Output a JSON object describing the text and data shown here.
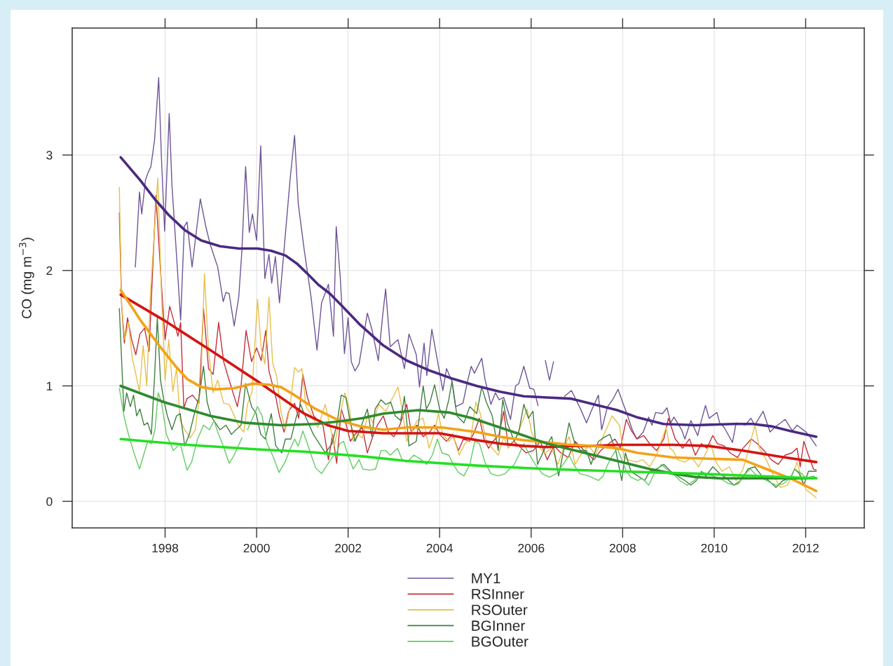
{
  "chart_data": {
    "type": "line",
    "ylabel": "CO (mg m$^{−3}$)",
    "xlim": [
      1995.97,
      2013.28
    ],
    "ylim": [
      -0.23,
      4.1
    ],
    "xticks": [
      1998,
      2000,
      2002,
      2004,
      2006,
      2008,
      2010,
      2012
    ],
    "yticks": [
      0,
      1,
      2,
      3
    ],
    "grid": true,
    "legend": "bottom",
    "series": [
      {
        "name": "MY1",
        "color": "#6e5496",
        "x": [
          1997.35,
          1997.44,
          1997.49,
          1997.57,
          1997.62,
          1997.69,
          1997.77,
          1997.86,
          1997.92,
          1997.99,
          1998.09,
          1998.15,
          1998.26,
          1998.34,
          1998.42,
          1998.48,
          1998.59,
          1998.66,
          1998.77,
          1998.89,
          1998.99,
          1999.15,
          1999.27,
          1999.33,
          1999.4,
          1999.51,
          1999.61,
          1999.68,
          1999.76,
          1999.84,
          1999.91,
          2000.0,
          2000.09,
          2000.18,
          2000.27,
          2000.33,
          2000.41,
          2000.5,
          2000.6,
          2000.73,
          2000.83,
          2000.91,
          2001.04,
          2001.19,
          2001.32,
          2001.42,
          2001.57,
          2001.68,
          2001.74,
          2001.83,
          2001.92,
          2002.0,
          2002.07,
          2002.15,
          2002.24,
          2002.42,
          2002.52,
          2002.66,
          2002.75,
          2002.82,
          2002.92,
          2003.09,
          2003.23,
          2003.33,
          2003.49,
          2003.56,
          2003.66,
          2003.72,
          2003.83,
          2003.92,
          2004.07,
          2004.15,
          2004.27,
          2004.35,
          2004.51,
          2004.61,
          2004.69,
          2004.76,
          2004.92,
          2004.99,
          2005.12,
          2005.22,
          2005.3,
          2005.4,
          2005.55,
          2005.66,
          2005.73,
          2005.84,
          2005.97,
          2006.06,
          2006.15,
          2006.23,
          2006.31,
          2006.4,
          2006.49,
          2006.6,
          2006.73,
          2006.88,
          2007.08,
          2007.21,
          2007.31,
          2007.47,
          2007.54,
          2007.67,
          2007.78,
          2007.9,
          2007.98,
          2008.11,
          2008.21,
          2008.31,
          2008.45,
          2008.57,
          2008.64,
          2008.72,
          2008.87,
          2008.97,
          2009.05,
          2009.12,
          2009.29,
          2009.36,
          2009.49,
          2009.64,
          2009.72,
          2009.81,
          2009.89,
          2010.06,
          2010.12,
          2010.22,
          2010.4,
          2010.48,
          2010.68,
          2010.8,
          2010.89,
          2011.07,
          2011.22,
          2011.32,
          2011.55,
          2011.71,
          2011.81,
          2012.01,
          2012.11,
          2012.23
        ],
        "values": [
          2.03,
          2.68,
          2.49,
          2.78,
          2.84,
          2.9,
          3.13,
          3.67,
          2.98,
          2.34,
          3.36,
          2.74,
          2.07,
          1.57,
          2.38,
          2.42,
          2.03,
          2.26,
          2.62,
          2.38,
          2.22,
          2.03,
          1.73,
          1.81,
          1.8,
          1.52,
          1.77,
          2.18,
          2.9,
          2.33,
          2.49,
          2.26,
          3.08,
          1.93,
          2.14,
          1.89,
          2.12,
          1.72,
          2.18,
          2.78,
          3.17,
          2.58,
          2.18,
          1.77,
          1.31,
          1.72,
          1.88,
          1.43,
          2.38,
          1.93,
          1.28,
          1.59,
          1.21,
          1.13,
          1.19,
          1.63,
          1.49,
          1.22,
          1.59,
          1.84,
          1.34,
          1.4,
          1.15,
          1.45,
          1.27,
          0.99,
          1.37,
          1.09,
          1.49,
          1.29,
          0.96,
          1.15,
          1.04,
          0.82,
          0.85,
          1.04,
          1.17,
          1.11,
          1.24,
          1.06,
          0.84,
          0.94,
          0.88,
          0.9,
          0.71,
          1.0,
          1.02,
          1.17,
          0.98,
          0.97,
          0.83,
          null,
          1.22,
          1.05,
          1.21,
          null,
          0.91,
          0.96,
          0.8,
          0.68,
          0.78,
          0.92,
          0.62,
          0.82,
          0.88,
          0.97,
          0.88,
          0.74,
          0.62,
          0.54,
          0.6,
          0.73,
          0.66,
          0.77,
          0.76,
          0.81,
          0.68,
          0.73,
          0.62,
          0.54,
          0.7,
          0.57,
          0.7,
          0.83,
          0.72,
          0.77,
          0.68,
          0.64,
          0.51,
          0.68,
          0.66,
          0.72,
          0.66,
          0.78,
          0.6,
          0.64,
          0.71,
          0.61,
          0.66,
          0.6,
          0.55,
          0.48
        ]
      },
      {
        "name": "RSInner",
        "color": "#c0303c",
        "x": [
          1997.0,
          1997.05,
          1997.11,
          1997.18,
          1997.27,
          1997.36,
          1997.45,
          1997.55,
          1997.65,
          1997.8,
          1997.9,
          1998.0,
          1998.1,
          1998.2,
          1998.28,
          1998.34,
          1998.41,
          1998.48,
          1998.6,
          1998.74,
          1998.84,
          1998.95,
          1999.05,
          1999.17,
          1999.28,
          1999.4,
          1999.58,
          1999.66,
          1999.77,
          1999.89,
          2000.0,
          2000.1,
          2000.2,
          2000.27,
          2000.42,
          2000.5,
          2000.6,
          2000.7,
          2000.83,
          2000.92,
          2001.01,
          2001.11,
          2001.25,
          2001.34,
          2001.45,
          2001.57,
          2001.66,
          2001.75,
          2001.85,
          2001.96,
          2002.05,
          2002.15,
          2002.31,
          2002.42,
          2002.53,
          2002.64,
          2002.77,
          2002.88,
          2003.0,
          2003.13,
          2003.28,
          2003.38,
          2003.5,
          2003.64,
          2003.78,
          2003.89,
          2004.0,
          2004.15,
          2004.28,
          2004.41,
          2004.52,
          2004.65,
          2004.76,
          2004.87,
          2004.97,
          2005.07,
          2005.17,
          2005.3,
          2005.4,
          2005.5,
          2005.62,
          2005.73,
          2005.89,
          2006.05,
          2006.2,
          2006.35,
          2006.5,
          2006.65,
          2006.81,
          2006.96,
          2007.16,
          2007.37,
          2007.52,
          2007.7,
          2007.83,
          2007.95,
          2008.08,
          2008.18,
          2008.31,
          2008.46,
          2008.59,
          2008.74,
          2008.9,
          2009.0,
          2009.15,
          2009.31,
          2009.46,
          2009.59,
          2009.72,
          2009.84,
          2009.97,
          2010.07,
          2010.22,
          2010.35,
          2010.51,
          2010.63,
          2010.81,
          2010.94,
          2011.09,
          2011.25,
          2011.4,
          2011.55,
          2011.7,
          2011.81,
          2011.88,
          2011.96,
          2012.06,
          2012.17,
          2012.23
        ],
        "values": [
          2.5,
          1.7,
          1.37,
          1.59,
          1.4,
          1.27,
          1.45,
          1.5,
          1.3,
          2.65,
          2.0,
          1.4,
          1.69,
          1.55,
          1.43,
          1.55,
          0.81,
          0.89,
          0.92,
          0.85,
          1.67,
          1.15,
          1.1,
          1.55,
          1.21,
          1.05,
          0.82,
          1.0,
          1.48,
          1.21,
          1.33,
          1.22,
          1.48,
          1.13,
          0.9,
          0.74,
          0.6,
          0.78,
          0.85,
          0.72,
          1.1,
          0.9,
          0.74,
          0.7,
          0.66,
          0.36,
          0.58,
          0.33,
          0.8,
          0.66,
          0.52,
          0.58,
          0.64,
          0.42,
          0.55,
          0.66,
          0.74,
          0.6,
          0.56,
          0.66,
          0.84,
          0.6,
          0.66,
          0.56,
          0.6,
          0.66,
          0.58,
          0.52,
          0.58,
          0.44,
          0.54,
          0.52,
          0.6,
          0.72,
          0.54,
          0.46,
          0.52,
          0.58,
          0.78,
          0.48,
          0.52,
          0.48,
          0.42,
          0.44,
          0.52,
          0.36,
          0.48,
          0.42,
          0.38,
          0.52,
          0.44,
          0.36,
          0.44,
          0.5,
          0.54,
          0.46,
          0.71,
          0.62,
          0.54,
          0.57,
          0.5,
          0.44,
          0.54,
          0.72,
          0.54,
          0.46,
          0.54,
          0.4,
          0.5,
          0.46,
          0.57,
          0.5,
          0.48,
          0.42,
          0.38,
          0.46,
          0.54,
          0.5,
          0.44,
          0.36,
          0.32,
          0.4,
          0.42,
          0.46,
          0.3,
          0.52,
          0.4,
          0.28,
          0.27
        ]
      },
      {
        "name": "RSOuter",
        "color": "#e8c04a",
        "x": [
          1997.0,
          1997.05,
          1997.12,
          1997.2,
          1997.28,
          1997.36,
          1997.44,
          1997.52,
          1997.6,
          1997.68,
          1997.76,
          1997.84,
          1997.92,
          1998.0,
          1998.08,
          1998.17,
          1998.25,
          1998.33,
          1998.43,
          1998.55,
          1998.66,
          1998.78,
          1998.86,
          1998.95,
          1999.05,
          1999.15,
          1999.28,
          1999.4,
          1999.5,
          1999.6,
          1999.72,
          1999.8,
          1999.9,
          2000.02,
          2000.1,
          2000.18,
          2000.27,
          2000.35,
          2000.44,
          2000.53,
          2000.63,
          2000.73,
          2000.83,
          2000.92,
          2000.99,
          2001.08,
          2001.18,
          2001.34,
          2001.5,
          2001.6,
          2001.7,
          2001.85,
          2001.93,
          2002.03,
          2002.11,
          2002.21,
          2002.31,
          2002.44,
          2002.54,
          2002.67,
          2002.82,
          2002.95,
          2003.09,
          2003.18,
          2003.28,
          2003.38,
          2003.51,
          2003.64,
          2003.77,
          2003.89,
          2003.97,
          2004.07,
          2004.2,
          2004.3,
          2004.43,
          2004.55,
          2004.68,
          2004.79,
          2004.89,
          2005.02,
          2005.15,
          2005.28,
          2005.4,
          2005.5,
          2005.63,
          2005.78,
          2005.91,
          2006.01,
          2006.14,
          2006.3,
          2006.45,
          2006.58,
          2006.71,
          2006.83,
          2006.96,
          2007.11,
          2007.26,
          2007.41,
          2007.57,
          2007.77,
          2007.93,
          2008.03,
          2008.13,
          2008.28,
          2008.44,
          2008.59,
          2008.74,
          2008.95,
          2009.03,
          2009.1,
          2009.2,
          2009.36,
          2009.51,
          2009.66,
          2009.77,
          2009.92,
          2010.04,
          2010.17,
          2010.33,
          2010.48,
          2010.63,
          2010.76,
          2010.89,
          2010.99,
          2011.14,
          2011.3,
          2011.45,
          2011.6,
          2011.7,
          2011.81,
          2011.91,
          2012.01,
          2012.14,
          2012.23
        ],
        "values": [
          2.72,
          1.7,
          1.4,
          1.55,
          1.25,
          1.1,
          0.95,
          1.35,
          1.0,
          1.8,
          2.3,
          2.8,
          1.8,
          1.05,
          1.4,
          0.95,
          1.15,
          0.7,
          0.62,
          0.55,
          0.62,
          1.0,
          1.97,
          1.3,
          0.94,
          1.05,
          0.85,
          0.84,
          0.75,
          0.66,
          0.6,
          0.84,
          0.95,
          1.75,
          1.33,
          1.19,
          1.77,
          1.2,
          1.08,
          0.78,
          0.62,
          0.82,
          1.16,
          1.12,
          1.15,
          0.82,
          0.76,
          0.64,
          0.84,
          0.66,
          0.48,
          0.8,
          0.94,
          0.8,
          0.52,
          0.58,
          0.55,
          0.76,
          0.68,
          0.84,
          0.78,
          0.88,
          0.99,
          0.8,
          0.52,
          0.6,
          0.7,
          0.72,
          0.46,
          0.6,
          0.76,
          0.58,
          0.52,
          0.56,
          0.4,
          0.5,
          0.54,
          0.86,
          0.76,
          0.52,
          0.46,
          0.4,
          0.56,
          0.46,
          0.52,
          0.66,
          0.8,
          0.6,
          0.48,
          0.42,
          0.46,
          0.32,
          0.46,
          0.56,
          0.32,
          0.42,
          0.48,
          0.4,
          0.56,
          0.74,
          0.66,
          0.38,
          0.36,
          0.34,
          0.36,
          0.3,
          0.4,
          0.64,
          0.46,
          0.44,
          0.36,
          0.34,
          0.38,
          0.3,
          0.38,
          0.5,
          0.34,
          0.26,
          0.3,
          0.18,
          0.28,
          0.46,
          0.66,
          0.46,
          0.36,
          0.22,
          0.12,
          0.14,
          0.22,
          0.34,
          0.2,
          0.1,
          0.06,
          0.03
        ]
      },
      {
        "name": "BGInner",
        "color": "#3f7f3f",
        "x": [
          1997.0,
          1997.1,
          1997.16,
          1997.24,
          1997.31,
          1997.38,
          1997.45,
          1997.54,
          1997.62,
          1997.7,
          1997.77,
          1997.83,
          1997.9,
          1997.97,
          1998.05,
          1998.15,
          1998.25,
          1998.33,
          1998.43,
          1998.53,
          1998.64,
          1998.74,
          1998.84,
          1998.92,
          1999.0,
          1999.1,
          1999.2,
          1999.33,
          1999.45,
          1999.55,
          1999.66,
          1999.76,
          1999.89,
          1999.99,
          2000.09,
          2000.19,
          2000.32,
          2000.42,
          2000.55,
          2000.63,
          2000.75,
          2000.86,
          2000.96,
          2001.04,
          2001.24,
          2001.37,
          2001.5,
          2001.65,
          2001.75,
          2001.85,
          2001.95,
          2002.05,
          2002.15,
          2002.26,
          2002.42,
          2002.52,
          2002.59,
          2002.72,
          2002.82,
          2002.93,
          2003.03,
          2003.15,
          2003.23,
          2003.33,
          2003.49,
          2003.64,
          2003.71,
          2003.79,
          2003.89,
          2004.0,
          2004.1,
          2004.2,
          2004.27,
          2004.38,
          2004.53,
          2004.66,
          2004.81,
          2004.92,
          2005.02,
          2005.15,
          2005.28,
          2005.38,
          2005.48,
          2005.63,
          2005.73,
          2005.84,
          2005.94,
          2006.04,
          2006.14,
          2006.3,
          2006.45,
          2006.6,
          2006.71,
          2006.83,
          2006.94,
          2007.08,
          2007.21,
          2007.31,
          2007.47,
          2007.62,
          2007.72,
          2007.85,
          2007.98,
          2008.06,
          2008.18,
          2008.33,
          2008.48,
          2008.59,
          2008.74,
          2008.9,
          2009.05,
          2009.2,
          2009.36,
          2009.49,
          2009.61,
          2009.72,
          2009.82,
          2009.97,
          2010.12,
          2010.27,
          2010.43,
          2010.58,
          2010.74,
          2010.89,
          2011.04,
          2011.19,
          2011.35,
          2011.5,
          2011.66,
          2011.76,
          2011.86,
          2011.96,
          2012.06,
          2012.23
        ],
        "values": [
          1.67,
          0.78,
          0.94,
          0.82,
          0.92,
          0.74,
          0.8,
          0.66,
          0.68,
          0.58,
          1.08,
          1.59,
          1.05,
          0.88,
          0.74,
          0.62,
          0.74,
          0.76,
          0.48,
          0.58,
          0.76,
          0.9,
          1.17,
          0.86,
          0.74,
          0.68,
          0.62,
          0.66,
          0.58,
          0.62,
          0.66,
          1.02,
          0.82,
          0.76,
          0.58,
          0.54,
          0.76,
          0.48,
          0.42,
          0.54,
          0.54,
          0.72,
          0.84,
          0.76,
          0.58,
          0.5,
          0.42,
          0.5,
          0.66,
          0.92,
          0.9,
          0.68,
          0.52,
          0.62,
          0.8,
          0.56,
          0.8,
          0.88,
          0.84,
          0.86,
          0.74,
          0.7,
          0.91,
          0.48,
          0.52,
          1.0,
          0.8,
          0.86,
          1.01,
          0.8,
          0.72,
          0.88,
          1.04,
          0.74,
          0.68,
          0.82,
          0.76,
          0.99,
          0.86,
          0.74,
          0.44,
          0.88,
          0.68,
          0.52,
          0.6,
          0.84,
          0.72,
          0.78,
          0.32,
          0.46,
          0.56,
          0.22,
          0.44,
          0.68,
          0.52,
          0.44,
          0.44,
          0.32,
          0.52,
          0.56,
          0.58,
          0.44,
          0.18,
          0.42,
          0.26,
          0.22,
          0.18,
          0.26,
          0.28,
          0.32,
          0.26,
          0.22,
          0.18,
          0.14,
          0.18,
          0.26,
          0.22,
          0.3,
          0.24,
          0.2,
          0.14,
          0.18,
          0.28,
          0.3,
          0.22,
          0.18,
          0.12,
          0.18,
          0.2,
          0.28,
          0.24,
          0.14,
          0.26,
          0.26
        ]
      },
      {
        "name": "BGOuter",
        "color": "#62cc62",
        "x": [
          1997.0,
          1997.1,
          1997.2,
          1997.32,
          1997.44,
          1997.53,
          1997.62,
          1997.7,
          1997.78,
          1997.85,
          1997.92,
          1998.03,
          1998.18,
          1998.33,
          1998.48,
          1998.58,
          1998.71,
          1998.84,
          1998.97,
          1999.07,
          1999.15,
          1999.27,
          1999.4,
          1999.51,
          1999.68,
          1999.74,
          1999.8,
          1999.89,
          2000.02,
          2000.12,
          2000.23,
          2000.37,
          2000.49,
          2000.62,
          2000.72,
          2000.83,
          2000.91,
          2001.01,
          2001.11,
          2001.21,
          2001.29,
          2001.42,
          2001.55,
          2001.65,
          2001.75,
          2001.82,
          2001.9,
          2002.0,
          2002.11,
          2002.24,
          2002.32,
          2002.47,
          2002.6,
          2002.72,
          2002.82,
          2002.92,
          2003.08,
          2003.18,
          2003.28,
          2003.44,
          2003.6,
          2003.72,
          2003.84,
          2003.95,
          2004.05,
          2004.2,
          2004.3,
          2004.41,
          2004.53,
          2004.66,
          2004.77,
          2004.87,
          2004.99,
          2005.12,
          2005.28,
          2005.43,
          2005.63,
          2005.73,
          2005.84,
          2005.94,
          2006.09,
          2006.24,
          2006.4,
          2006.55,
          2006.7,
          2006.83,
          2006.93,
          2007.06,
          2007.26,
          2007.47,
          2007.57,
          2007.72,
          2007.88,
          2007.98,
          2008.08,
          2008.18,
          2008.33,
          2008.43,
          2008.57,
          2008.69,
          2008.85,
          2008.95,
          2009.1,
          2009.25,
          2009.41,
          2009.56,
          2009.72,
          2009.82,
          2009.97,
          2010.12,
          2010.28,
          2010.43,
          2010.53,
          2010.63,
          2010.79,
          2010.94,
          2011.14,
          2011.35,
          2011.5,
          2011.66,
          2011.76,
          2011.91,
          2012.01,
          2012.17,
          2012.23
        ],
        "values": [
          0.98,
          0.74,
          0.58,
          0.42,
          0.28,
          0.4,
          0.52,
          0.5,
          0.62,
          0.94,
          0.86,
          0.58,
          0.44,
          0.5,
          0.27,
          0.34,
          0.54,
          0.66,
          0.62,
          0.7,
          0.6,
          0.48,
          0.33,
          0.4,
          0.55,
          null,
          0.62,
          0.7,
          0.82,
          0.74,
          0.5,
          0.38,
          0.25,
          0.34,
          0.44,
          0.54,
          0.48,
          0.61,
          0.5,
          0.38,
          0.29,
          0.24,
          0.32,
          0.38,
          0.42,
          0.5,
          0.52,
          0.4,
          0.28,
          0.36,
          0.28,
          0.27,
          0.28,
          0.44,
          0.44,
          0.4,
          0.46,
          0.36,
          0.34,
          0.4,
          0.36,
          0.32,
          0.4,
          0.54,
          0.42,
          0.4,
          0.32,
          0.25,
          0.22,
          0.32,
          0.52,
          0.5,
          0.34,
          0.24,
          0.22,
          0.24,
          0.32,
          0.4,
          0.5,
          0.42,
          0.32,
          0.24,
          0.21,
          0.24,
          0.32,
          0.4,
          0.32,
          0.24,
          0.22,
          0.18,
          0.22,
          0.36,
          0.46,
          0.36,
          0.26,
          0.21,
          0.18,
          0.2,
          0.14,
          0.24,
          0.32,
          0.28,
          0.24,
          0.18,
          0.14,
          0.18,
          0.26,
          0.24,
          0.22,
          0.2,
          0.16,
          0.14,
          0.15,
          0.22,
          0.28,
          0.22,
          0.18,
          0.14,
          0.15,
          0.2,
          0.28,
          0.24,
          0.2,
          0.22,
          0.2
        ]
      },
      {
        "color": "#4a2a82",
        "x": [
          1997.03,
          1997.46,
          1997.77,
          1998.08,
          1998.43,
          1998.79,
          1999.2,
          1999.61,
          2000.02,
          2000.32,
          2000.63,
          2000.88,
          2001.09,
          2001.34,
          2001.6,
          2001.85,
          2002.26,
          2002.77,
          2003.28,
          2003.8,
          2004.3,
          2004.81,
          2005.32,
          2005.84,
          2006.35,
          2006.86,
          2007.37,
          2007.88,
          2008.3,
          2008.89,
          2009.6,
          2010.43,
          2010.84,
          2011.25,
          2011.66,
          2012.23
        ],
        "values": [
          2.98,
          2.78,
          2.62,
          2.48,
          2.35,
          2.26,
          2.21,
          2.19,
          2.19,
          2.17,
          2.13,
          2.06,
          1.98,
          1.88,
          1.8,
          1.7,
          1.53,
          1.35,
          1.22,
          1.13,
          1.06,
          1.0,
          0.95,
          0.91,
          0.9,
          0.89,
          0.84,
          0.79,
          0.73,
          0.67,
          0.66,
          0.67,
          0.67,
          0.65,
          0.61,
          0.56
        ]
      },
      {
        "color": "#d41414",
        "x": [
          1997.03,
          1997.97,
          1998.99,
          2000.02,
          2000.53,
          2001.04,
          2001.55,
          2002.0,
          2002.77,
          2003.28,
          2004.0,
          2004.81,
          2005.32,
          2005.84,
          2006.35,
          2006.86,
          2007.37,
          2007.88,
          2009.1,
          2009.87,
          2010.63,
          2011.4,
          2012.23
        ],
        "values": [
          1.79,
          1.57,
          1.31,
          1.04,
          0.9,
          0.76,
          0.66,
          0.61,
          0.59,
          0.59,
          0.59,
          0.53,
          0.5,
          0.48,
          0.47,
          0.48,
          0.48,
          0.49,
          0.49,
          0.48,
          0.44,
          0.39,
          0.34
        ]
      },
      {
        "color": "#f2a218",
        "x": [
          1997.03,
          1997.46,
          1997.87,
          1998.23,
          1998.48,
          1998.79,
          1999.1,
          1999.51,
          1999.91,
          2000.27,
          2000.53,
          2000.83,
          2001.29,
          2001.75,
          2002.26,
          2002.77,
          2003.28,
          2004.05,
          2004.81,
          2005.32,
          2005.84,
          2006.35,
          2006.86,
          2007.37,
          2007.88,
          2008.33,
          2009.1,
          2009.87,
          2010.63,
          2011.14,
          2011.66,
          2012.23
        ],
        "values": [
          1.83,
          1.57,
          1.35,
          1.17,
          1.06,
          0.99,
          0.97,
          0.98,
          1.02,
          1.01,
          0.99,
          0.92,
          0.8,
          0.71,
          0.65,
          0.62,
          0.64,
          0.64,
          0.6,
          0.56,
          0.53,
          0.51,
          0.49,
          0.48,
          0.46,
          0.42,
          0.38,
          0.37,
          0.36,
          0.28,
          0.2,
          0.09
        ]
      },
      {
        "color": "#2e8b2e",
        "x": [
          1997.03,
          1997.97,
          1998.99,
          1999.76,
          2000.53,
          2001.29,
          2001.75,
          2002.31,
          2002.77,
          2003.54,
          2004.2,
          2004.71,
          2005.32,
          2005.84,
          2006.35,
          2006.86,
          2007.37,
          2007.88,
          2008.59,
          2009.1,
          2009.6,
          2010.12,
          2011.14,
          2012.23
        ],
        "values": [
          1.0,
          0.86,
          0.74,
          0.68,
          0.66,
          0.67,
          0.69,
          0.72,
          0.76,
          0.79,
          0.77,
          0.72,
          0.64,
          0.57,
          0.5,
          0.45,
          0.4,
          0.35,
          0.28,
          0.24,
          0.21,
          0.2,
          0.2,
          0.2
        ]
      },
      {
        "color": "#24e024",
        "x": [
          1997.03,
          1998.48,
          2000.02,
          2001.04,
          2002.31,
          2003.28,
          2004.81,
          2006.35,
          2007.88,
          2009.6,
          2012.23
        ],
        "values": [
          0.54,
          0.49,
          0.45,
          0.43,
          0.39,
          0.35,
          0.31,
          0.28,
          0.26,
          0.24,
          0.2
        ]
      }
    ]
  }
}
